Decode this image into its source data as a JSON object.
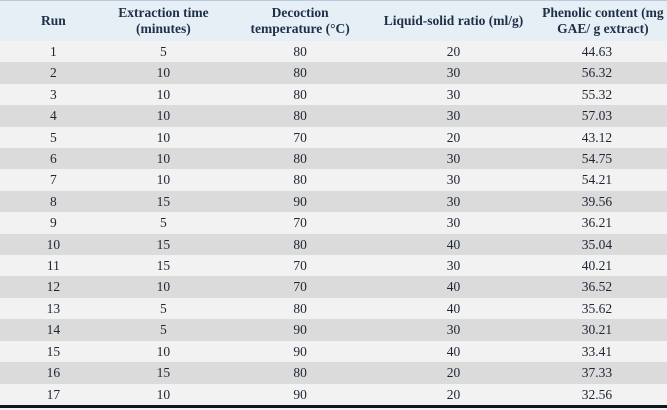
{
  "chart_data": {
    "type": "table",
    "columns": [
      "Run",
      "Extraction time (minutes)",
      "Decoction temperature (°C)",
      "Liquid-solid ratio (ml/g)",
      "Phenolic content (mg GAE/ g extract)"
    ],
    "rows": [
      [
        "1",
        "5",
        "80",
        "20",
        "44.63"
      ],
      [
        "2",
        "10",
        "80",
        "30",
        "56.32"
      ],
      [
        "3",
        "10",
        "80",
        "30",
        "55.32"
      ],
      [
        "4",
        "10",
        "80",
        "30",
        "57.03"
      ],
      [
        "5",
        "10",
        "70",
        "20",
        "43.12"
      ],
      [
        "6",
        "10",
        "80",
        "30",
        "54.75"
      ],
      [
        "7",
        "10",
        "80",
        "30",
        "54.21"
      ],
      [
        "8",
        "15",
        "90",
        "30",
        "39.56"
      ],
      [
        "9",
        "5",
        "70",
        "30",
        "36.21"
      ],
      [
        "10",
        "15",
        "80",
        "40",
        "35.04"
      ],
      [
        "11",
        "15",
        "70",
        "30",
        "40.21"
      ],
      [
        "12",
        "10",
        "70",
        "40",
        "36.52"
      ],
      [
        "13",
        "5",
        "80",
        "40",
        "35.62"
      ],
      [
        "14",
        "5",
        "90",
        "30",
        "30.21"
      ],
      [
        "15",
        "10",
        "90",
        "40",
        "33.41"
      ],
      [
        "16",
        "15",
        "80",
        "20",
        "37.33"
      ],
      [
        "17",
        "10",
        "90",
        "20",
        "32.56"
      ]
    ],
    "layout": {
      "grid": "off",
      "row_striping": true,
      "header_position": "top"
    }
  },
  "colors": {
    "header_bg": "#e7eff6",
    "header_text": "#1e2f48",
    "body_text": "#1d2634",
    "row_odd": "#f2f2f2",
    "row_even": "#dbdbdb",
    "top_border": "#b9cbda",
    "bottom_border": "#11161c",
    "page_bg": "#ffffff"
  }
}
